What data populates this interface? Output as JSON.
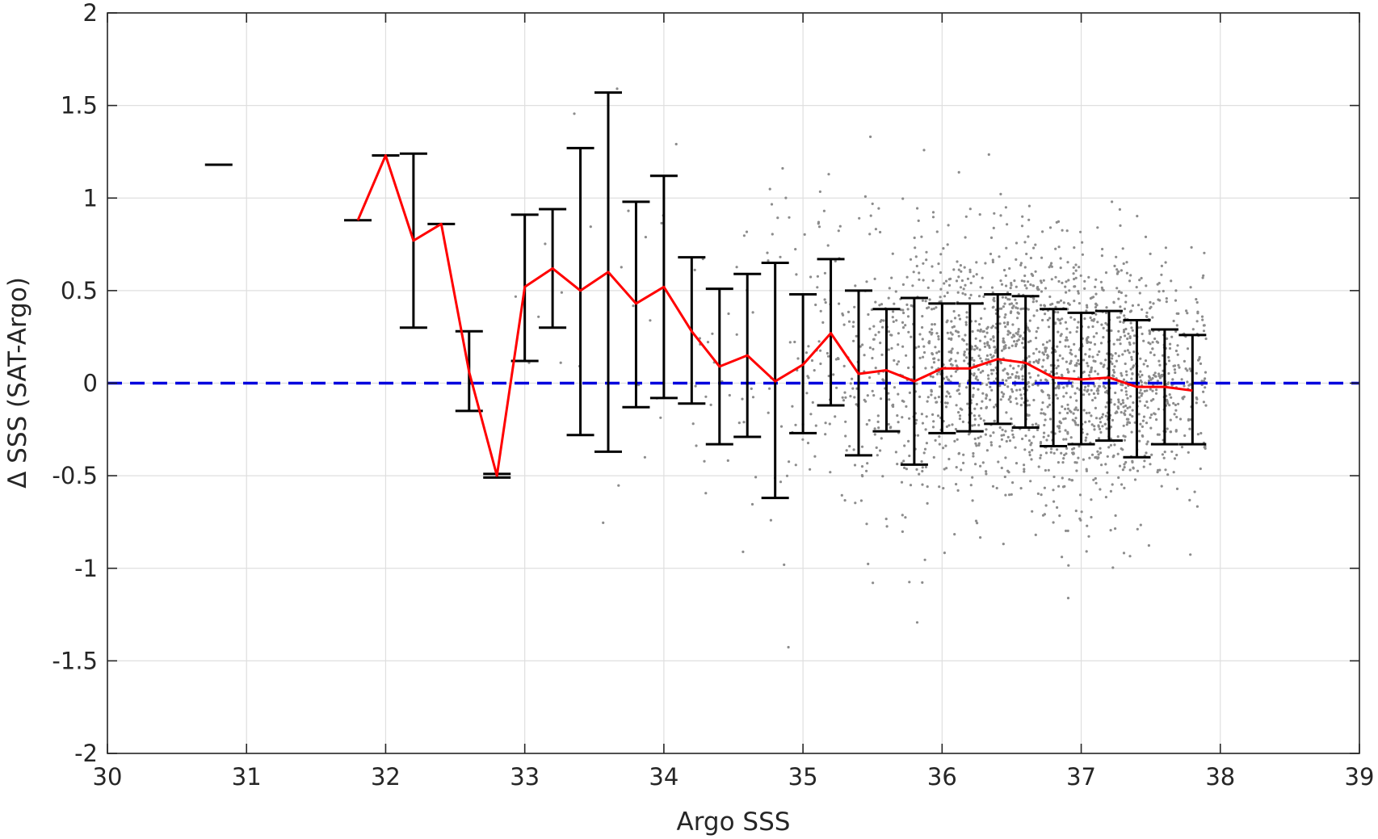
{
  "chart_data": {
    "type": "scatter",
    "title": "",
    "xlabel": "Argo SSS",
    "ylabel": "Δ SSS (SAT-Argo)",
    "xlim": [
      30,
      39
    ],
    "ylim": [
      -2,
      2
    ],
    "x_ticks": [
      "30",
      "31",
      "32",
      "33",
      "34",
      "35",
      "36",
      "37",
      "38",
      "39"
    ],
    "y_ticks": [
      "2",
      "1.5",
      "1",
      "0.5",
      "0",
      "-0.5",
      "-1",
      "-1.5",
      "-2"
    ],
    "grid": true,
    "legend": "none",
    "colors": {
      "scatter": "#8c8c8c",
      "mean_line": "#ff0000",
      "errorbar": "#000000",
      "zero_line": "#0000dd"
    },
    "reference_line": {
      "y": 0,
      "style": "dashed"
    },
    "bins": {
      "x": [
        30.8,
        31.8,
        32.0,
        32.2,
        32.4,
        32.6,
        32.8,
        33.0,
        33.2,
        33.4,
        33.6,
        33.8,
        34.0,
        34.2,
        34.4,
        34.6,
        34.8,
        35.0,
        35.2,
        35.4,
        35.6,
        35.8,
        36.0,
        36.2,
        36.4,
        36.6,
        36.8,
        37.0,
        37.2,
        37.4,
        37.6,
        37.8
      ],
      "mean": [
        1.18,
        0.88,
        1.23,
        0.77,
        0.86,
        0.06,
        -0.5,
        0.52,
        0.62,
        0.5,
        0.6,
        0.43,
        0.52,
        0.28,
        0.09,
        0.15,
        0.01,
        0.1,
        0.27,
        0.05,
        0.07,
        0.01,
        0.08,
        0.08,
        0.13,
        0.11,
        0.03,
        0.02,
        0.03,
        -0.02,
        -0.02,
        -0.04
      ],
      "lower": [
        1.18,
        0.88,
        1.23,
        0.3,
        0.86,
        -0.15,
        -0.51,
        0.12,
        0.3,
        -0.28,
        -0.37,
        -0.13,
        -0.08,
        -0.11,
        -0.33,
        -0.29,
        -0.62,
        -0.27,
        -0.12,
        -0.39,
        -0.26,
        -0.44,
        -0.27,
        -0.26,
        -0.22,
        -0.24,
        -0.34,
        -0.33,
        -0.31,
        -0.4,
        -0.33,
        -0.33
      ],
      "upper": [
        1.18,
        0.88,
        1.23,
        1.24,
        0.86,
        0.28,
        -0.49,
        0.91,
        0.94,
        1.27,
        1.57,
        0.98,
        1.12,
        0.68,
        0.51,
        0.59,
        0.65,
        0.48,
        0.67,
        0.5,
        0.4,
        0.46,
        0.43,
        0.43,
        0.48,
        0.47,
        0.4,
        0.38,
        0.39,
        0.34,
        0.29,
        0.26
      ]
    }
  }
}
